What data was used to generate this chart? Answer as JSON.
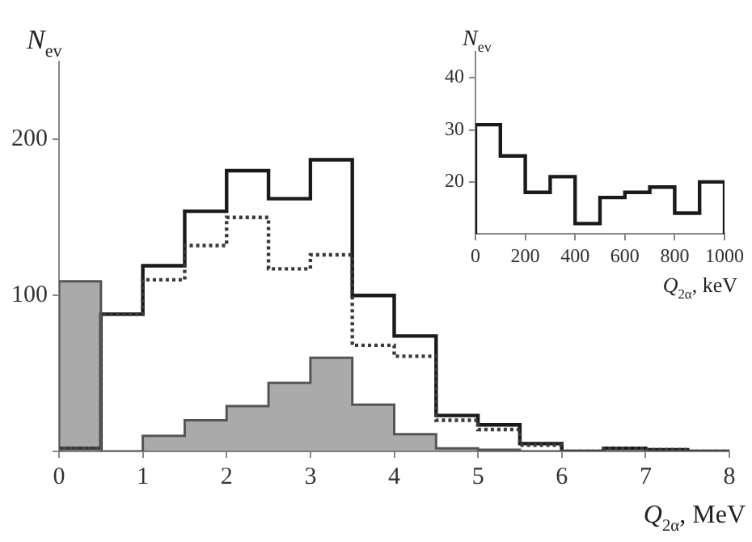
{
  "chart_data": [
    {
      "type": "histogram",
      "xlabel": "Q$_{2α}$, MeV",
      "ylabel": "N$_{ev}$",
      "bins": [
        0,
        0.5,
        1,
        1.5,
        2,
        2.5,
        3,
        3.5,
        4,
        4.5,
        5,
        5.5,
        6,
        6.5,
        7,
        7.5,
        8
      ],
      "series": [
        {
          "color": "#1a1a1a",
          "line_style": "solid",
          "values": [
            2,
            88,
            119,
            154,
            180,
            162,
            187,
            100,
            74,
            23,
            17,
            5,
            0,
            2,
            1,
            0
          ]
        },
        {
          "color": "#3a3a3a",
          "line_style": "dotted",
          "values": [
            2,
            88,
            110,
            132,
            150,
            117,
            126,
            68,
            61,
            20,
            14,
            4,
            0,
            2,
            1,
            0
          ]
        },
        {
          "color": "#555555",
          "values": [
            109,
            0,
            10,
            20,
            29,
            44,
            60,
            30,
            11,
            2,
            1,
            0,
            0,
            0,
            0,
            0
          ]
        }
      ],
      "xlim": [
        0,
        8
      ],
      "xticks": [
        0,
        1,
        2,
        3,
        4,
        5,
        6,
        7,
        8
      ],
      "ylim": [
        0,
        250
      ],
      "yticks": [
        {
          "value": 0,
          "label": null
        },
        100,
        200
      ],
      "grid": false,
      "legend": false
    },
    {
      "type": "histogram",
      "xlabel": "Q$_{2α}$, keV",
      "ylabel": "N$_{ev}$",
      "bins": [
        0,
        100,
        200,
        300,
        400,
        500,
        600,
        700,
        800,
        900,
        1000
      ],
      "series": [
        {
          "color": "#1a1a1a",
          "line_style": "solid",
          "values": [
            31,
            25,
            18,
            21,
            12,
            17,
            18,
            19,
            14,
            20
          ]
        }
      ],
      "xlim": [
        0,
        1000
      ],
      "xticks": [
        0,
        200,
        400,
        600,
        800,
        1000
      ],
      "ylim": [
        10,
        45
      ],
      "yticks": [
        20,
        30,
        40
      ],
      "grid": false,
      "legend": false
    }
  ]
}
